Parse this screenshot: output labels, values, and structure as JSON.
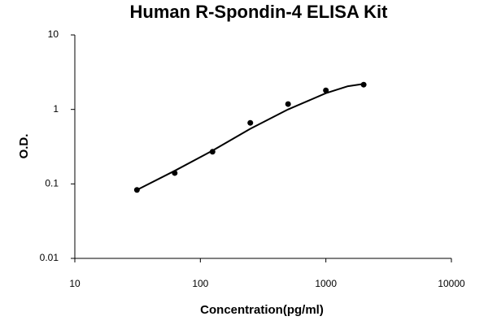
{
  "chart_data": {
    "type": "scatter",
    "title": "Human R-Spondin-4 ELISA Kit",
    "xlabel": "Concentration(pg/ml)",
    "ylabel": "O.D.",
    "xscale": "log",
    "yscale": "log",
    "xlim": [
      10,
      10000
    ],
    "ylim": [
      0.01,
      10
    ],
    "xticks": [
      10,
      100,
      1000,
      10000
    ],
    "yticks": [
      0.01,
      0.1,
      1,
      10
    ],
    "series": [
      {
        "type": "scatter",
        "color": "#000000",
        "x": [
          31.25,
          62.5,
          125,
          250,
          500,
          1000,
          2000
        ],
        "values": [
          0.083,
          0.14,
          0.27,
          0.66,
          1.18,
          1.8,
          2.15
        ]
      },
      {
        "type": "line",
        "color": "#000000",
        "x": [
          31.25,
          62.5,
          125,
          250,
          500,
          1000,
          1500,
          2000
        ],
        "values": [
          0.083,
          0.15,
          0.28,
          0.55,
          1.0,
          1.65,
          2.05,
          2.2
        ]
      }
    ]
  }
}
